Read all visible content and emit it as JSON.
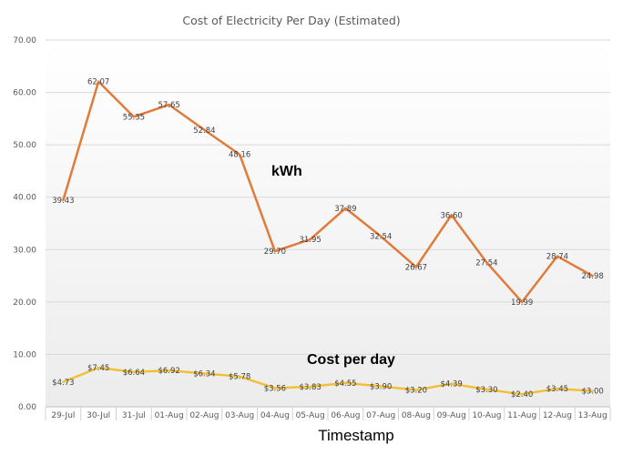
{
  "chart_data": {
    "type": "line",
    "title": "Cost of Electricity Per Day (Estimated)",
    "xlabel": "Timestamp",
    "ylabel": "",
    "ylim": [
      0,
      70
    ],
    "yticks": [
      "0.00",
      "10.00",
      "20.00",
      "30.00",
      "40.00",
      "50.00",
      "60.00",
      "70.00"
    ],
    "grid": true,
    "legend": "none",
    "categories": [
      "29-Jul",
      "30-Jul",
      "31-Jul",
      "01-Aug",
      "02-Aug",
      "03-Aug",
      "04-Aug",
      "05-Aug",
      "06-Aug",
      "07-Aug",
      "08-Aug",
      "09-Aug",
      "10-Aug",
      "11-Aug",
      "12-Aug",
      "13-Aug"
    ],
    "series": [
      {
        "name": "kWh",
        "color": "#E07B39",
        "values": [
          39.43,
          62.07,
          55.35,
          57.65,
          52.84,
          48.16,
          29.7,
          31.95,
          37.89,
          32.54,
          26.67,
          36.6,
          27.54,
          19.99,
          28.74,
          24.98
        ],
        "labels": [
          "39.43",
          "62.07",
          "55.35",
          "57.65",
          "52.84",
          "48.16",
          "29.70",
          "31.95",
          "37.89",
          "32.54",
          "26.67",
          "36.60",
          "27.54",
          "19.99",
          "28.74",
          "24.98"
        ]
      },
      {
        "name": "Cost per day",
        "color": "#F2C037",
        "values": [
          4.73,
          7.45,
          6.64,
          6.92,
          6.34,
          5.78,
          3.56,
          3.83,
          4.55,
          3.9,
          3.2,
          4.39,
          3.3,
          2.4,
          3.45,
          3.0
        ],
        "labels": [
          "$4.73",
          "$7.45",
          "$6.64",
          "$6.92",
          "$6.34",
          "$5.78",
          "$3.56",
          "$3.83",
          "$4.55",
          "$3.90",
          "$3.20",
          "$4.39",
          "$3.30",
          "$2.40",
          "$3.45",
          "$3.00"
        ]
      }
    ]
  }
}
